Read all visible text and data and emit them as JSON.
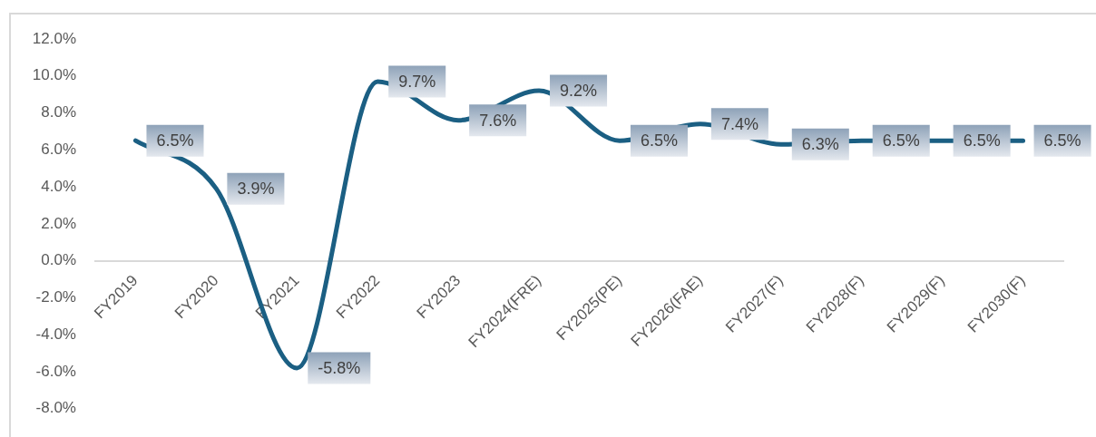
{
  "chart_data": {
    "type": "line",
    "categories": [
      "FY2019",
      "FY2020",
      "FY2021",
      "FY2022",
      "FY2023",
      "FY2024(FRE)",
      "FY2025(PE)",
      "FY2026(FAE)",
      "FY2027(F)",
      "FY2028(F)",
      "FY2029(F)",
      "FY2030(F)"
    ],
    "values": [
      6.5,
      3.9,
      -5.8,
      9.7,
      7.6,
      9.2,
      6.5,
      7.4,
      6.3,
      6.5,
      6.5,
      6.5
    ],
    "value_labels": [
      "6.5%",
      "3.9%",
      "-5.8%",
      "9.7%",
      "7.6%",
      "9.2%",
      "6.5%",
      "7.4%",
      "6.3%",
      "6.5%",
      "6.5%",
      "6.5%"
    ],
    "color": "#1b5f83",
    "marker": "none",
    "line_style": "solid",
    "ylim": [
      -8,
      12
    ],
    "yticks": [
      {
        "value": -8,
        "label": "-8.0%"
      },
      {
        "value": -6,
        "label": "-6.0%"
      },
      {
        "value": -4,
        "label": "-4.0%"
      },
      {
        "value": -2,
        "label": "-2.0%"
      },
      {
        "value": 0,
        "label": "0.0%"
      },
      {
        "value": 2,
        "label": "2.0%"
      },
      {
        "value": 4,
        "label": "4.0%"
      },
      {
        "value": 6,
        "label": "6.0%"
      },
      {
        "value": 8,
        "label": "8.0%"
      },
      {
        "value": 10,
        "label": "10.0%"
      },
      {
        "value": 12,
        "label": "12.0%"
      }
    ]
  }
}
